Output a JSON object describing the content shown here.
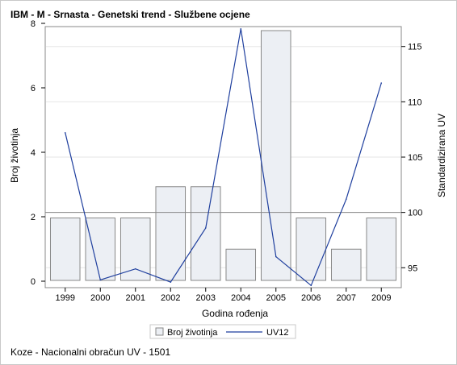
{
  "chart_data": {
    "type": "bar",
    "title": "IBM - M - Srnasta - Genetski trend - Službene ocjene",
    "xlabel": "Godina rođenja",
    "ylabel_left": "Broj životinja",
    "ylabel_right": "Standardizirana UV",
    "categories": [
      "1999",
      "2000",
      "2001",
      "2002",
      "2003",
      "2004",
      "2005",
      "2006",
      "2007",
      "2009"
    ],
    "series": [
      {
        "name": "Broj životinja",
        "type": "bar",
        "axis": "left",
        "values": [
          2,
          2,
          2,
          3,
          3,
          1,
          8,
          2,
          1,
          2
        ]
      },
      {
        "name": "UV12",
        "type": "line",
        "axis": "right",
        "values": [
          107.2,
          93.9,
          94.9,
          93.7,
          98.6,
          116.6,
          96.0,
          93.4,
          101.2,
          111.7
        ]
      }
    ],
    "ylim_left": [
      0,
      8
    ],
    "yticks_left": [
      0,
      2,
      4,
      6,
      8
    ],
    "ylim_right": [
      93.2,
      116.8
    ],
    "yticks_right": [
      95,
      100,
      105,
      110,
      115
    ],
    "reference_line_right": 100,
    "grid": true,
    "legend_position": "bottom",
    "colors": {
      "bar_fill": "#eceff4",
      "bar_stroke": "#888888",
      "line": "#1f3f9e",
      "grid": "#e6e6e6",
      "ref_line": "#888888"
    }
  },
  "footer": "Koze - Nacionalni obračun UV - 1501"
}
